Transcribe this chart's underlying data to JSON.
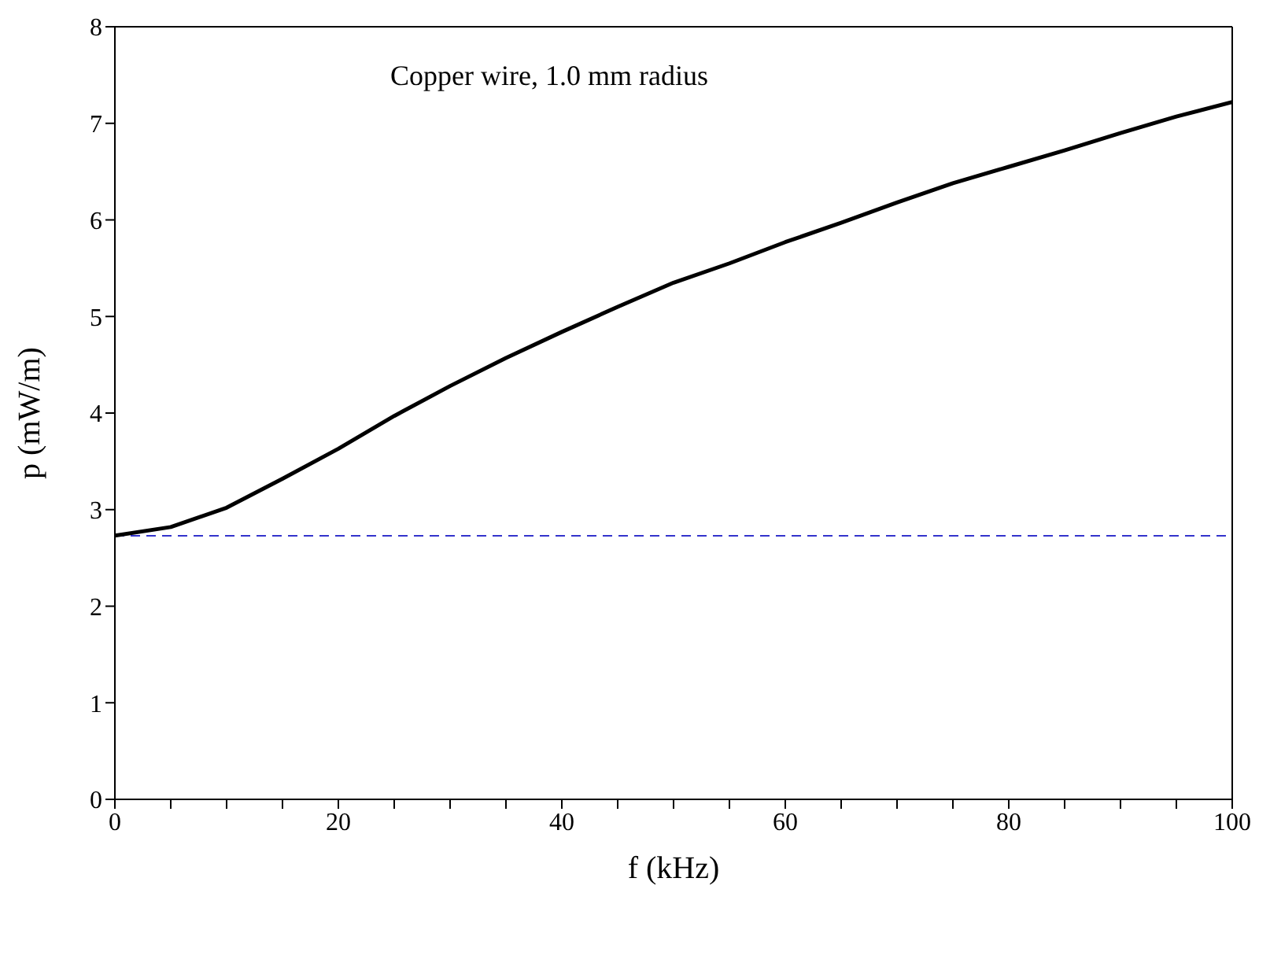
{
  "chart_data": {
    "type": "line",
    "xlabel": "f (kHz)",
    "ylabel": "p (mW/m)",
    "annotations": [
      "Copper wire, 1.0 mm radius"
    ],
    "x": [
      0,
      5,
      10,
      15,
      20,
      25,
      30,
      35,
      40,
      45,
      50,
      55,
      60,
      65,
      70,
      75,
      80,
      85,
      90,
      95,
      100
    ],
    "series": [
      {
        "color": "#000000",
        "values": [
          2.73,
          2.82,
          3.02,
          3.32,
          3.63,
          3.97,
          4.28,
          4.57,
          4.84,
          5.1,
          5.35,
          5.55,
          5.77,
          5.97,
          6.18,
          6.38,
          6.55,
          6.72,
          6.9,
          7.07,
          7.22
        ]
      }
    ],
    "xlim": [
      0,
      100
    ],
    "xticks": [
      0,
      {
        "value": 5,
        "label": null
      },
      20,
      {
        "value": 15,
        "label": null
      },
      {
        "value": 10,
        "label": null
      },
      {
        "value": 25,
        "label": null
      },
      {
        "value": 30,
        "label": null
      },
      {
        "value": 35,
        "label": null
      },
      40,
      {
        "value": 45,
        "label": null
      },
      {
        "value": 50,
        "label": null
      },
      {
        "value": 55,
        "label": null
      },
      60,
      {
        "value": 65,
        "label": null
      },
      {
        "value": 70,
        "label": null
      },
      {
        "value": 75,
        "label": null
      },
      80,
      {
        "value": 85,
        "label": null
      },
      {
        "value": 90,
        "label": null
      },
      {
        "value": 95,
        "label": null
      },
      100
    ],
    "ylim": [
      0,
      8
    ],
    "yticks": [
      0,
      1,
      2,
      3,
      4,
      5,
      6,
      7,
      8
    ],
    "ref_lines": [
      {
        "axis": "y",
        "value": 2.73,
        "color": "#3333cc",
        "line_style": "dashed"
      }
    ],
    "grid": false,
    "legend": false,
    "marker": "none",
    "line_style": "solid"
  }
}
